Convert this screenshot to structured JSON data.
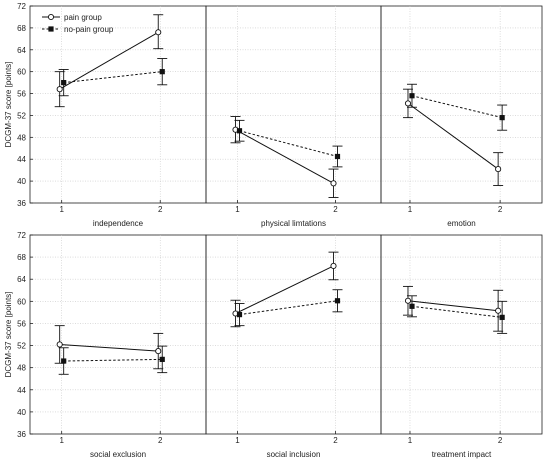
{
  "chart_data": {
    "type": "line",
    "ylabel": "DCGM-37 score [points]",
    "ylim": [
      36,
      72
    ],
    "yticks": [
      36,
      40,
      44,
      48,
      52,
      56,
      60,
      64,
      68,
      72
    ],
    "grid": true,
    "legend": {
      "placement": "top-left",
      "entries": [
        {
          "name": "pain group",
          "marker": "open-circle",
          "line": "solid"
        },
        {
          "name": "no-pain group",
          "marker": "filled-square",
          "line": "dashed"
        }
      ]
    },
    "x_ticks": [
      "1",
      "2"
    ],
    "panels": [
      {
        "row": 0,
        "col": 0,
        "xlabel": "independence",
        "pain": {
          "mean": [
            56.8,
            67.2
          ],
          "ci_low": [
            53.6,
            64.2
          ],
          "ci_high": [
            60.0,
            70.4
          ]
        },
        "nopain": {
          "mean": [
            58.0,
            60.0
          ],
          "ci_low": [
            55.6,
            57.6
          ],
          "ci_high": [
            60.4,
            62.4
          ]
        }
      },
      {
        "row": 0,
        "col": 1,
        "xlabel": "physical limtations",
        "pain": {
          "mean": [
            49.4,
            39.6
          ],
          "ci_low": [
            47.0,
            37.0
          ],
          "ci_high": [
            51.8,
            42.2
          ]
        },
        "nopain": {
          "mean": [
            49.2,
            44.5
          ],
          "ci_low": [
            47.3,
            42.6
          ],
          "ci_high": [
            51.1,
            46.4
          ]
        }
      },
      {
        "row": 0,
        "col": 2,
        "xlabel": "emotion",
        "pain": {
          "mean": [
            54.2,
            42.2
          ],
          "ci_low": [
            51.6,
            39.2
          ],
          "ci_high": [
            56.8,
            45.2
          ]
        },
        "nopain": {
          "mean": [
            55.6,
            51.6
          ],
          "ci_low": [
            53.5,
            49.3
          ],
          "ci_high": [
            57.7,
            53.9
          ]
        }
      },
      {
        "row": 1,
        "col": 0,
        "xlabel": "social exclusion",
        "pain": {
          "mean": [
            52.2,
            51.0
          ],
          "ci_low": [
            48.8,
            47.8
          ],
          "ci_high": [
            55.6,
            54.2
          ]
        },
        "nopain": {
          "mean": [
            49.2,
            49.5
          ],
          "ci_low": [
            46.8,
            47.1
          ],
          "ci_high": [
            51.6,
            51.9
          ]
        }
      },
      {
        "row": 1,
        "col": 1,
        "xlabel": "social inclusion",
        "pain": {
          "mean": [
            57.8,
            66.4
          ],
          "ci_low": [
            55.4,
            63.9
          ],
          "ci_high": [
            60.2,
            68.9
          ]
        },
        "nopain": {
          "mean": [
            57.6,
            60.1
          ],
          "ci_low": [
            55.6,
            58.1
          ],
          "ci_high": [
            59.6,
            62.1
          ]
        }
      },
      {
        "row": 1,
        "col": 2,
        "xlabel": "treatment impact",
        "pain": {
          "mean": [
            60.1,
            58.3
          ],
          "ci_low": [
            57.5,
            54.6
          ],
          "ci_high": [
            62.7,
            62.0
          ]
        },
        "nopain": {
          "mean": [
            59.1,
            57.1
          ],
          "ci_low": [
            57.2,
            54.2
          ],
          "ci_high": [
            61.0,
            60.0
          ]
        }
      }
    ]
  }
}
